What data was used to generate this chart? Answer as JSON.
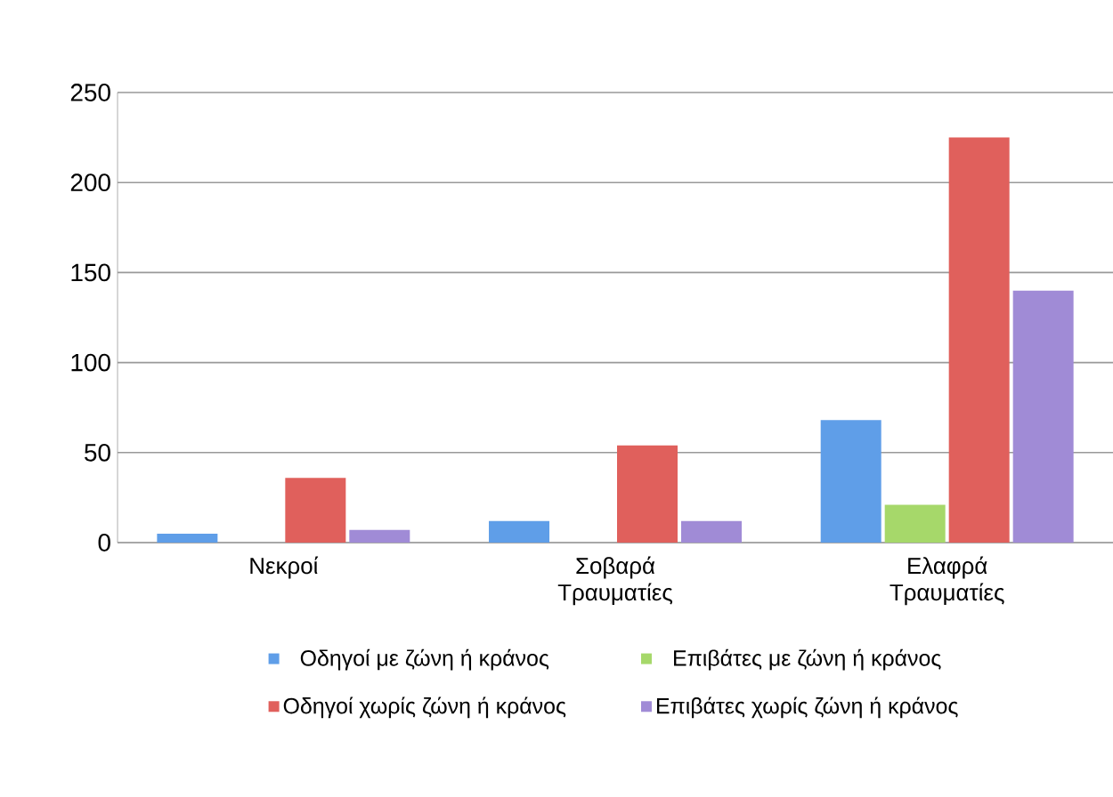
{
  "chart_data": {
    "type": "bar",
    "categories": [
      "Νεκροί",
      "Σοβαρά Τραυματίες",
      "Ελαφρά Τραυματίες"
    ],
    "series": [
      {
        "name": "Οδηγοί με ζώνη ή κράνος",
        "color": "#5f9ee8",
        "values": [
          5,
          12,
          68
        ]
      },
      {
        "name": "Επιβάτες με ζώνη ή κράνος",
        "color": "#a6d86a",
        "values": [
          0,
          0,
          21
        ]
      },
      {
        "name": "Οδηγοί χωρίς ζώνη ή κράνος",
        "color": "#e0605c",
        "values": [
          36,
          54,
          225
        ]
      },
      {
        "name": "Επιβάτες χωρίς ζώνη ή κράνος",
        "color": "#a08bd6",
        "values": [
          7,
          12,
          140
        ]
      }
    ],
    "ylim": [
      0,
      250
    ],
    "yticks": [
      0,
      50,
      100,
      150,
      200,
      250
    ],
    "grid": "y",
    "legend": "bottom"
  }
}
